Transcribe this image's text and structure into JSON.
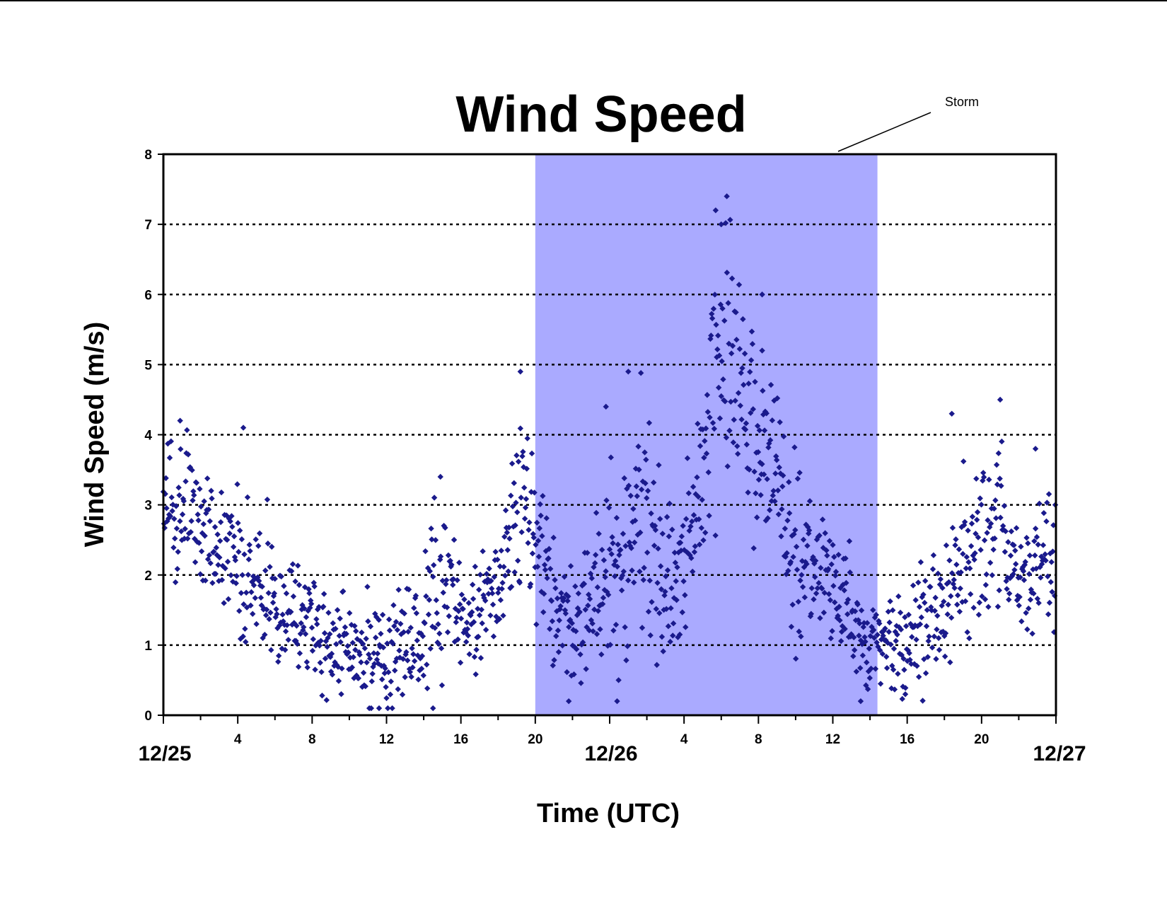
{
  "chart_data": {
    "type": "scatter",
    "title": "Wind Speed",
    "xlabel": "Time (UTC)",
    "ylabel": "Wind Speed (m/s)",
    "ylim": [
      0,
      8
    ],
    "yticks": [
      0,
      1,
      2,
      3,
      4,
      5,
      6,
      7,
      8
    ],
    "xlim_hours": [
      0,
      48
    ],
    "hour_ticks": [
      {
        "hour": 4,
        "label": "4"
      },
      {
        "hour": 8,
        "label": "8"
      },
      {
        "hour": 12,
        "label": "12"
      },
      {
        "hour": 16,
        "label": "16"
      },
      {
        "hour": 20,
        "label": "20"
      },
      {
        "hour": 28,
        "label": "4"
      },
      {
        "hour": 32,
        "label": "8"
      },
      {
        "hour": 36,
        "label": "12"
      },
      {
        "hour": 40,
        "label": "16"
      },
      {
        "hour": 44,
        "label": "20"
      }
    ],
    "date_labels": [
      {
        "hour": 0,
        "label": "12/25"
      },
      {
        "hour": 24,
        "label": "12/26"
      },
      {
        "hour": 48,
        "label": "12/27"
      }
    ],
    "grid": "horizontal dotted",
    "marker_color": "#1a1a8c",
    "shade_color": "#aaaaff",
    "annotation": {
      "text": "Storm",
      "x_start_hour": 20,
      "x_end_hour": 38.4
    },
    "series_profile": [
      {
        "hour": 0.0,
        "mean": 2.8,
        "spread": 0.7
      },
      {
        "hour": 1.5,
        "mean": 3.0,
        "spread": 0.7
      },
      {
        "hour": 3.0,
        "mean": 2.4,
        "spread": 0.6
      },
      {
        "hour": 4.5,
        "mean": 2.0,
        "spread": 0.9
      },
      {
        "hour": 6.0,
        "mean": 1.5,
        "spread": 0.6
      },
      {
        "hour": 8.0,
        "mean": 1.2,
        "spread": 0.5
      },
      {
        "hour": 10.0,
        "mean": 1.0,
        "spread": 0.5
      },
      {
        "hour": 12.0,
        "mean": 0.8,
        "spread": 0.6
      },
      {
        "hour": 14.0,
        "mean": 1.2,
        "spread": 0.7
      },
      {
        "hour": 15.0,
        "mean": 2.0,
        "spread": 1.0
      },
      {
        "hour": 16.5,
        "mean": 1.3,
        "spread": 0.5
      },
      {
        "hour": 18.0,
        "mean": 1.8,
        "spread": 0.6
      },
      {
        "hour": 19.0,
        "mean": 3.0,
        "spread": 1.0
      },
      {
        "hour": 20.0,
        "mean": 2.5,
        "spread": 0.8
      },
      {
        "hour": 21.5,
        "mean": 1.4,
        "spread": 0.7
      },
      {
        "hour": 23.0,
        "mean": 1.5,
        "spread": 0.8
      },
      {
        "hour": 24.5,
        "mean": 2.3,
        "spread": 1.0
      },
      {
        "hour": 26.0,
        "mean": 2.8,
        "spread": 1.3
      },
      {
        "hour": 27.5,
        "mean": 1.6,
        "spread": 0.7
      },
      {
        "hour": 29.0,
        "mean": 3.5,
        "spread": 1.2
      },
      {
        "hour": 30.0,
        "mean": 5.5,
        "spread": 1.2
      },
      {
        "hour": 31.0,
        "mean": 4.5,
        "spread": 1.2
      },
      {
        "hour": 32.0,
        "mean": 3.8,
        "spread": 0.9
      },
      {
        "hour": 33.0,
        "mean": 3.4,
        "spread": 0.9
      },
      {
        "hour": 34.0,
        "mean": 2.0,
        "spread": 0.9
      },
      {
        "hour": 35.5,
        "mean": 2.0,
        "spread": 0.7
      },
      {
        "hour": 37.0,
        "mean": 1.3,
        "spread": 0.6
      },
      {
        "hour": 38.5,
        "mean": 1.0,
        "spread": 0.5
      },
      {
        "hour": 40.0,
        "mean": 1.2,
        "spread": 0.6
      },
      {
        "hour": 41.5,
        "mean": 1.4,
        "spread": 0.6
      },
      {
        "hour": 43.0,
        "mean": 2.0,
        "spread": 0.8
      },
      {
        "hour": 44.5,
        "mean": 2.8,
        "spread": 0.9
      },
      {
        "hour": 46.0,
        "mean": 2.0,
        "spread": 0.6
      },
      {
        "hour": 48.0,
        "mean": 2.3,
        "spread": 0.7
      }
    ],
    "peaks": [
      {
        "hour": 0.9,
        "value": 4.2
      },
      {
        "hour": 4.3,
        "value": 4.1
      },
      {
        "hour": 14.9,
        "value": 3.4
      },
      {
        "hour": 19.2,
        "value": 4.9
      },
      {
        "hour": 23.8,
        "value": 4.4
      },
      {
        "hour": 25.0,
        "value": 4.9
      },
      {
        "hour": 29.7,
        "value": 7.2
      },
      {
        "hour": 30.0,
        "value": 7.0
      },
      {
        "hour": 30.3,
        "value": 7.4
      },
      {
        "hour": 32.2,
        "value": 6.0
      },
      {
        "hour": 32.2,
        "value": 5.2
      },
      {
        "hour": 42.4,
        "value": 4.3
      },
      {
        "hour": 45.0,
        "value": 4.5
      },
      {
        "hour": 46.9,
        "value": 3.8
      }
    ],
    "troughs": [
      {
        "hour": 11.6,
        "value": 0.1
      },
      {
        "hour": 14.5,
        "value": 0.1
      },
      {
        "hour": 21.8,
        "value": 0.2
      },
      {
        "hour": 24.4,
        "value": 0.2
      },
      {
        "hour": 37.5,
        "value": 0.2
      },
      {
        "hour": 39.9,
        "value": 0.3
      }
    ]
  }
}
